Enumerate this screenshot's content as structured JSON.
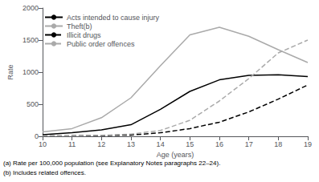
{
  "chart_data": {
    "type": "line",
    "x": [
      10,
      11,
      12,
      13,
      14,
      15,
      16,
      17,
      18,
      19
    ],
    "series": [
      {
        "name": "Acts intended to cause injury",
        "color": "#000000",
        "line_style": "solid",
        "values": [
          25,
          55,
          100,
          180,
          420,
          700,
          880,
          950,
          960,
          930
        ]
      },
      {
        "name": "Theft(b)",
        "color": "#aaaaaa",
        "line_style": "solid",
        "values": [
          70,
          120,
          290,
          600,
          1100,
          1580,
          1700,
          1560,
          1350,
          1150
        ]
      },
      {
        "name": "Illicit drugs",
        "color": "#000000",
        "line_style": "dashed",
        "values": [
          5,
          8,
          12,
          20,
          55,
          120,
          220,
          380,
          580,
          800
        ]
      },
      {
        "name": "Public order offences",
        "color": "#aaaaaa",
        "line_style": "dashed",
        "values": [
          5,
          8,
          15,
          35,
          90,
          250,
          550,
          900,
          1300,
          1500
        ]
      }
    ],
    "xlim": [
      10,
      19
    ],
    "xticks": [
      10,
      11,
      12,
      13,
      14,
      15,
      16,
      17,
      18,
      19
    ],
    "ylim": [
      0,
      2000
    ],
    "yticks": [
      0,
      500,
      1000,
      1500,
      2000
    ],
    "xlabel": "Age (years)",
    "ylabel": "Rate",
    "annotations": [
      "(a) Rate per 100,000 population (see Explanatory Notes paragraphs 22–24).",
      "(b) Includes related offences."
    ],
    "legend": "upper left",
    "grid": false
  }
}
